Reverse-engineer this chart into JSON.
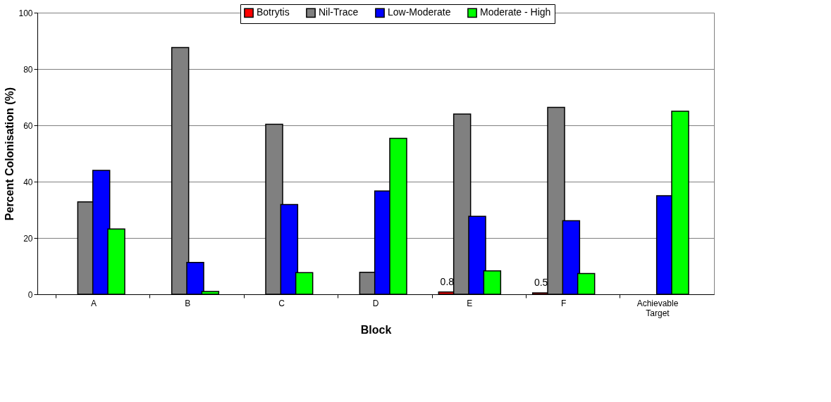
{
  "chart_data": {
    "type": "bar",
    "xlabel": "Block",
    "ylabel": "Percent Colonisation (%)",
    "categories": [
      "A",
      "B",
      "C",
      "D",
      "E",
      "F",
      "Achievable Target"
    ],
    "series": [
      {
        "name": "Botrytis",
        "color": "#ff0000",
        "values": [
          0,
          0,
          0,
          0,
          0.8,
          0.5,
          0
        ],
        "value_labels": [
          null,
          null,
          null,
          null,
          "0.8",
          "0.5",
          null
        ]
      },
      {
        "name": "Nil-Trace",
        "color": "#808080",
        "values": [
          32.8,
          87.6,
          60.4,
          7.8,
          64.0,
          66.4,
          0
        ]
      },
      {
        "name": "Low-Moderate",
        "color": "#0000ff",
        "values": [
          44.0,
          11.3,
          31.9,
          36.7,
          27.7,
          26.1,
          35
        ]
      },
      {
        "name": "Moderate - High",
        "color": "#00ff00",
        "values": [
          23.2,
          1.0,
          7.7,
          55.4,
          8.3,
          7.4,
          65
        ]
      }
    ],
    "ylim": [
      0,
      100
    ],
    "yticks": [
      0,
      20,
      40,
      60,
      80,
      100
    ],
    "grid": "y",
    "legend": "top"
  }
}
